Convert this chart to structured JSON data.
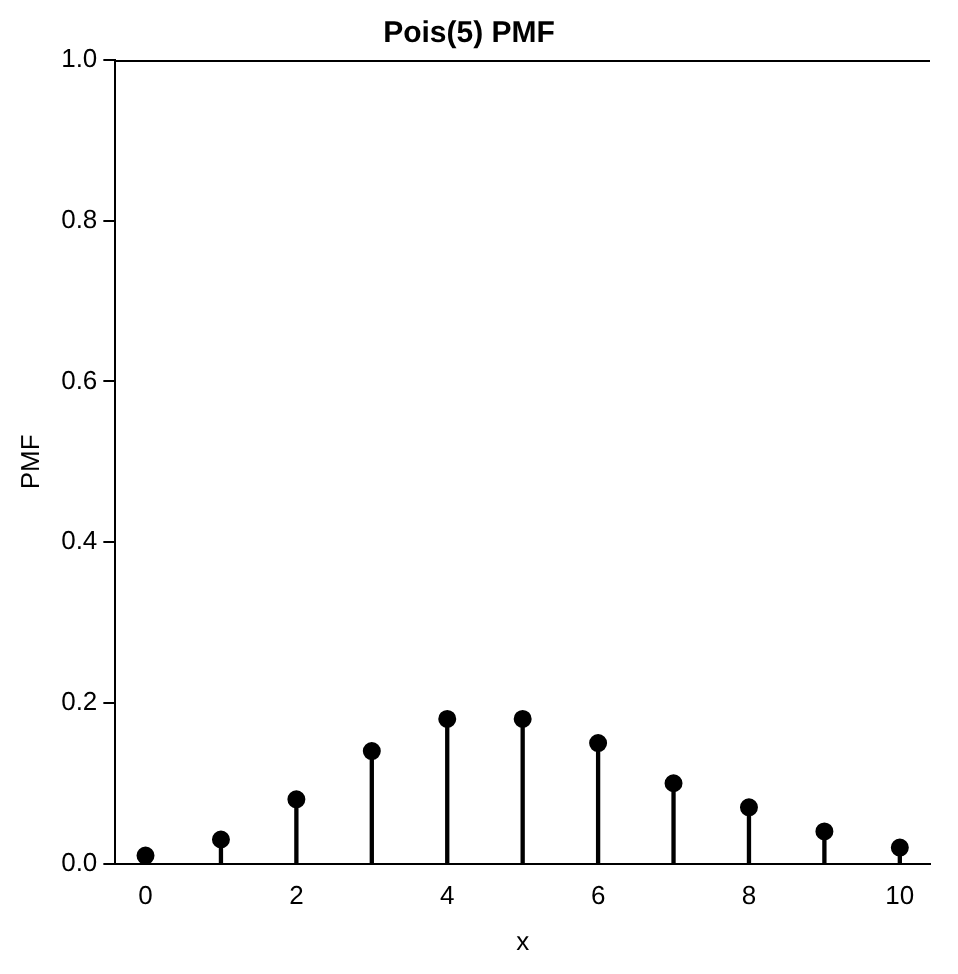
{
  "chart_data": {
    "type": "lollipop",
    "title": "Pois(5) PMF",
    "xlabel": "x",
    "ylabel": "PMF",
    "x": [
      0,
      1,
      2,
      3,
      4,
      5,
      6,
      7,
      8,
      9,
      10
    ],
    "values": [
      0.01,
      0.03,
      0.08,
      0.14,
      0.18,
      0.18,
      0.15,
      0.1,
      0.07,
      0.04,
      0.02
    ],
    "color": "#000000",
    "marker": "circle",
    "xlim": [
      -0.4,
      10.4
    ],
    "xticks": [
      0,
      2,
      4,
      6,
      8,
      10
    ],
    "ylim": [
      0,
      1
    ],
    "yticks": [
      {
        "value": 0,
        "label": "0.0"
      },
      0.2,
      0.4,
      0.6,
      0.8,
      {
        "value": 1,
        "label": "1.0"
      }
    ],
    "grid": false,
    "legend": false
  }
}
